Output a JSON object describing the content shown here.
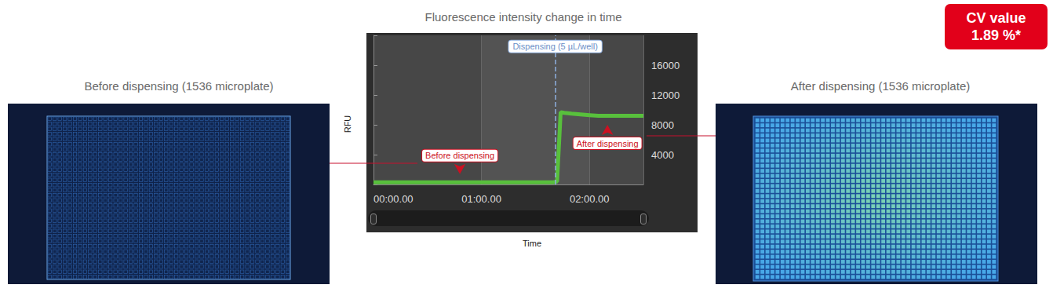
{
  "chart_data": {
    "type": "line",
    "title": "Fluorescence intensity change in time",
    "x_label": "Time",
    "y_label": "RFU",
    "x": [
      0,
      10,
      20,
      30,
      40,
      50,
      60,
      70,
      80,
      90,
      100,
      102,
      103,
      104,
      106,
      110,
      115,
      120,
      125,
      130,
      140,
      150
    ],
    "values": [
      300,
      300,
      300,
      300,
      300,
      300,
      300,
      300,
      300,
      300,
      300,
      400,
      5000,
      9700,
      9600,
      9500,
      9400,
      9300,
      9200,
      9200,
      9200,
      9200
    ],
    "color": "#58c03c",
    "xlim": [
      0,
      150
    ],
    "xticks": [
      {
        "value": 0,
        "label": "00:00.00"
      },
      {
        "value": 60,
        "label": "01:00.00"
      },
      {
        "value": 120,
        "label": "02:00.00"
      }
    ],
    "ylim": [
      0,
      20000
    ],
    "yticks": [
      4000,
      8000,
      12000,
      16000
    ],
    "grid": true,
    "annotations": [
      {
        "text": "Dispensing (5 µL/well)",
        "x": 101,
        "line_style": "dashed",
        "color": "#8fb0e0"
      },
      {
        "text": "Before dispensing",
        "x": 48,
        "y": 1400,
        "marker": "arrow_down",
        "color": "#cc1122"
      },
      {
        "text": "After dispensing",
        "x": 130,
        "y": 8000,
        "marker": "arrow_up",
        "color": "#cc1122"
      }
    ]
  },
  "panels": [
    {
      "title": "Before dispensing (1536 microplate)",
      "filled": false
    },
    {
      "title": "After dispensing (1536 microplate)",
      "filled": true
    }
  ],
  "badge": {
    "lines": [
      "CV value",
      "1.89 %*"
    ]
  }
}
